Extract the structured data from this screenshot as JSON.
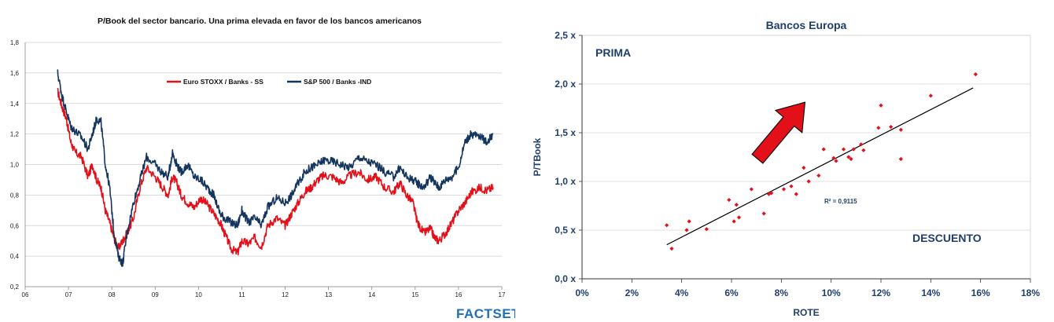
{
  "chart_data": [
    {
      "type": "line",
      "title": "P/Book del sector bancario. Una prima elevada en favor de los bancos americanos",
      "xlabel": "",
      "ylabel": "",
      "x_ticks": [
        "06",
        "07",
        "08",
        "09",
        "10",
        "11",
        "12",
        "13",
        "14",
        "15",
        "16",
        "17"
      ],
      "y_ticks": [
        "0,2",
        "0,4",
        "0,6",
        "0,8",
        "1,0",
        "1,2",
        "1,4",
        "1,6",
        "1,8"
      ],
      "xlim": [
        2006,
        2017
      ],
      "ylim": [
        0.2,
        1.8
      ],
      "grid": "horizontal",
      "legend_position": "top-center",
      "series": [
        {
          "name": "Euro STOXX / Banks - SS",
          "color": "#e3101a",
          "x": [
            2006.75,
            2006.85,
            2006.95,
            2007.05,
            2007.15,
            2007.3,
            2007.45,
            2007.55,
            2007.65,
            2007.75,
            2007.85,
            2007.95,
            2008.05,
            2008.15,
            2008.25,
            2008.35,
            2008.5,
            2008.65,
            2008.8,
            2009.0,
            2009.15,
            2009.3,
            2009.4,
            2009.5,
            2009.6,
            2009.75,
            2009.9,
            2010.05,
            2010.2,
            2010.35,
            2010.5,
            2010.6,
            2010.75,
            2010.9,
            2011.0,
            2011.15,
            2011.3,
            2011.45,
            2011.6,
            2011.8,
            2012.0,
            2012.15,
            2012.3,
            2012.45,
            2012.6,
            2012.75,
            2012.9,
            2013.1,
            2013.3,
            2013.5,
            2013.7,
            2013.9,
            2014.1,
            2014.3,
            2014.5,
            2014.65,
            2014.8,
            2014.95,
            2015.05,
            2015.2,
            2015.35,
            2015.45,
            2015.55,
            2015.7,
            2015.85,
            2016.0,
            2016.15,
            2016.3,
            2016.5,
            2016.65,
            2016.8
          ],
          "y": [
            1.48,
            1.38,
            1.3,
            1.15,
            1.08,
            1.05,
            0.92,
            1.0,
            0.9,
            0.85,
            0.7,
            0.62,
            0.52,
            0.45,
            0.5,
            0.55,
            0.65,
            0.85,
            0.98,
            0.92,
            0.86,
            0.8,
            0.92,
            0.88,
            0.8,
            0.75,
            0.72,
            0.78,
            0.74,
            0.68,
            0.62,
            0.55,
            0.45,
            0.42,
            0.5,
            0.48,
            0.52,
            0.46,
            0.6,
            0.65,
            0.6,
            0.68,
            0.75,
            0.82,
            0.85,
            0.9,
            0.93,
            0.92,
            0.88,
            0.93,
            0.95,
            0.9,
            0.92,
            0.85,
            0.82,
            0.88,
            0.8,
            0.75,
            0.62,
            0.55,
            0.58,
            0.52,
            0.5,
            0.55,
            0.62,
            0.7,
            0.75,
            0.82,
            0.85,
            0.83,
            0.85
          ]
        },
        {
          "name": "S&P 500 / Banks -IND",
          "color": "#14355e",
          "x": [
            2006.75,
            2006.85,
            2006.95,
            2007.05,
            2007.15,
            2007.3,
            2007.45,
            2007.55,
            2007.65,
            2007.75,
            2007.85,
            2007.95,
            2008.05,
            2008.15,
            2008.25,
            2008.35,
            2008.5,
            2008.65,
            2008.8,
            2009.0,
            2009.15,
            2009.3,
            2009.4,
            2009.5,
            2009.6,
            2009.75,
            2009.9,
            2010.05,
            2010.2,
            2010.35,
            2010.5,
            2010.6,
            2010.75,
            2010.9,
            2011.0,
            2011.15,
            2011.3,
            2011.45,
            2011.6,
            2011.8,
            2012.0,
            2012.15,
            2012.3,
            2012.45,
            2012.6,
            2012.75,
            2012.9,
            2013.1,
            2013.3,
            2013.5,
            2013.7,
            2013.9,
            2014.1,
            2014.3,
            2014.5,
            2014.65,
            2014.8,
            2014.95,
            2015.05,
            2015.2,
            2015.35,
            2015.45,
            2015.55,
            2015.7,
            2015.85,
            2016.0,
            2016.15,
            2016.3,
            2016.5,
            2016.65,
            2016.8
          ],
          "y": [
            1.6,
            1.45,
            1.35,
            1.25,
            1.22,
            1.18,
            1.1,
            1.2,
            1.3,
            1.28,
            1.0,
            0.85,
            0.55,
            0.4,
            0.35,
            0.55,
            0.75,
            0.9,
            1.05,
            1.0,
            0.95,
            0.92,
            1.08,
            1.0,
            0.95,
            1.0,
            0.92,
            0.9,
            0.85,
            0.8,
            0.68,
            0.65,
            0.62,
            0.6,
            0.7,
            0.62,
            0.65,
            0.6,
            0.72,
            0.78,
            0.75,
            0.8,
            0.88,
            0.95,
            0.98,
            1.0,
            1.03,
            1.02,
            1.0,
            0.98,
            1.05,
            1.02,
            1.0,
            0.95,
            0.92,
            0.98,
            0.92,
            0.9,
            0.88,
            0.85,
            0.92,
            0.88,
            0.85,
            0.9,
            0.92,
            0.98,
            1.15,
            1.2,
            1.18,
            1.15,
            1.2
          ]
        }
      ]
    },
    {
      "type": "scatter",
      "title": "Bancos Europa",
      "xlabel": "ROTE",
      "ylabel": "P/TBook",
      "x_ticks": [
        "0%",
        "2%",
        "4%",
        "6%",
        "8%",
        "10%",
        "12%",
        "14%",
        "16%",
        "18%"
      ],
      "y_ticks": [
        "0,0 x",
        "0,5 x",
        "1,0 x",
        "1,5 x",
        "2,0 x",
        "2,5 x"
      ],
      "xlim": [
        0,
        18
      ],
      "ylim": [
        0,
        2.5
      ],
      "grid": "horizontal",
      "points_color": "#e3101a",
      "x": [
        3.4,
        3.6,
        4.2,
        4.3,
        5.0,
        5.9,
        6.1,
        6.2,
        6.3,
        6.8,
        7.3,
        7.5,
        7.6,
        8.1,
        8.4,
        8.6,
        8.9,
        9.1,
        9.5,
        9.7,
        10.1,
        10.2,
        10.5,
        10.7,
        10.8,
        10.9,
        11.2,
        11.3,
        11.9,
        12.0,
        12.4,
        12.8,
        12.8,
        14.0,
        15.8
      ],
      "y": [
        0.55,
        0.31,
        0.5,
        0.59,
        0.51,
        0.81,
        0.59,
        0.76,
        0.63,
        0.92,
        0.67,
        0.87,
        0.88,
        0.92,
        0.95,
        0.87,
        1.14,
        1.0,
        1.06,
        1.33,
        1.24,
        1.21,
        1.33,
        1.25,
        1.23,
        1.33,
        1.38,
        1.32,
        1.55,
        1.78,
        1.56,
        1.53,
        1.23,
        1.88,
        2.1
      ],
      "trendline": {
        "x": [
          3.4,
          15.7
        ],
        "y": [
          0.35,
          1.96
        ]
      },
      "r_squared_label": "R² = 0,9115",
      "annotations": {
        "top_left": "PRIMA",
        "bottom_right": "DESCUENTO"
      }
    }
  ],
  "footer": {
    "logo_text": "FACTSET"
  },
  "colors": {
    "accent_red": "#e3101a",
    "navy": "#14355e",
    "text_blue": "#1f3e6e",
    "factset_blue": "#1f6fb8"
  }
}
